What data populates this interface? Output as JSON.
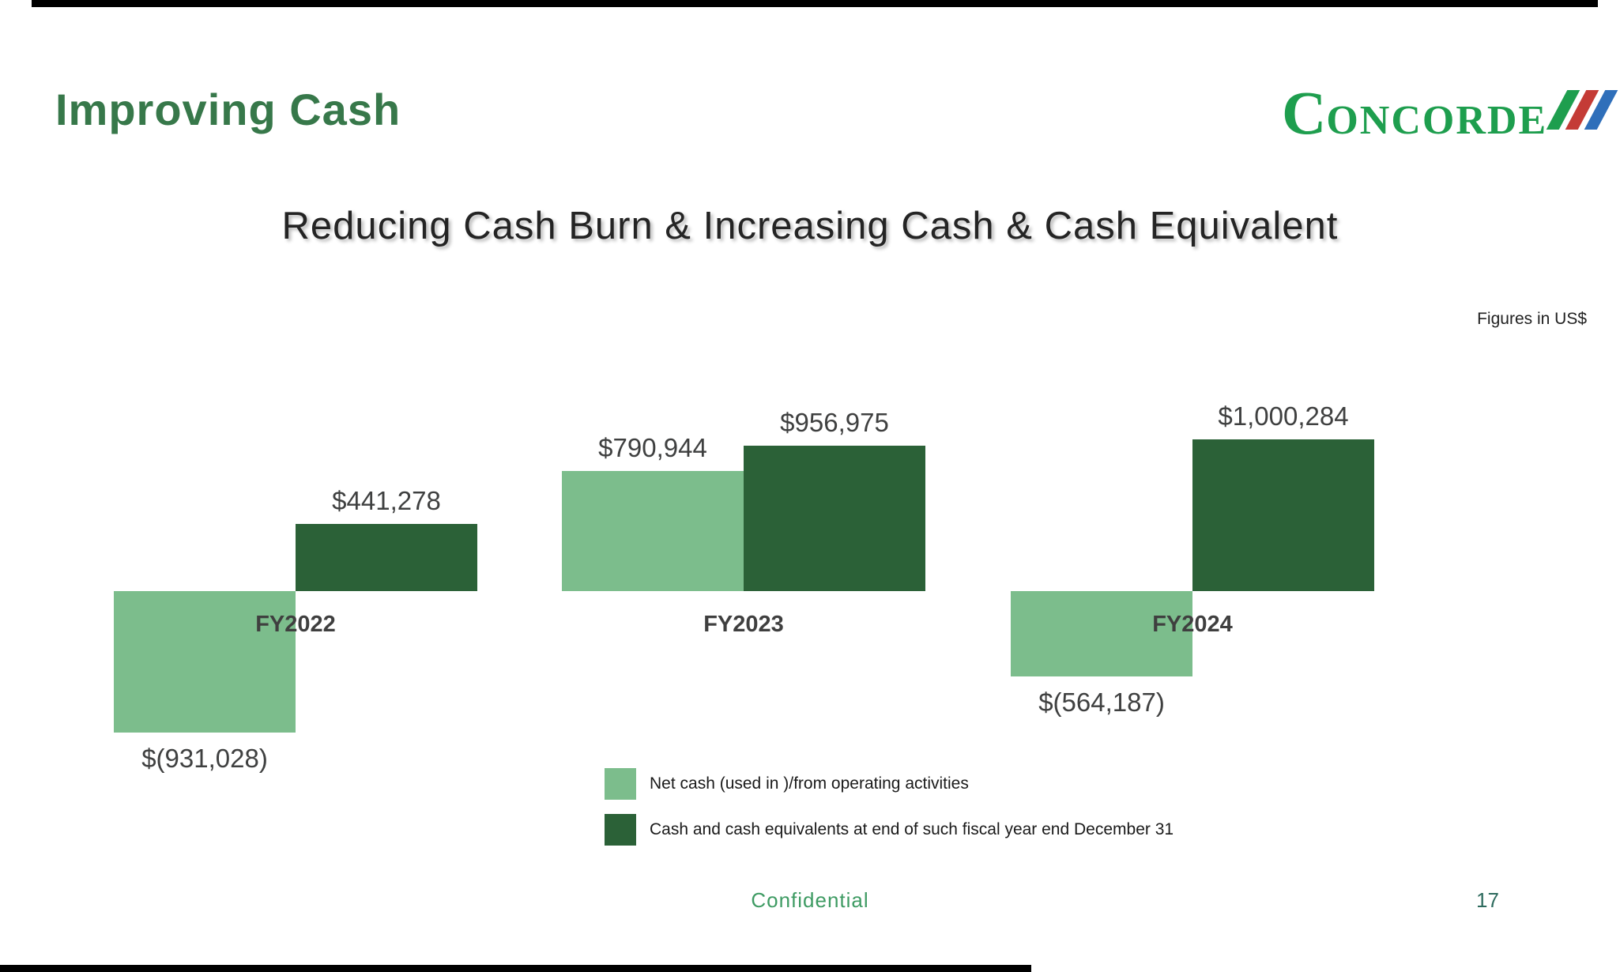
{
  "slide": {
    "title": "Improving Cash",
    "subtitle": "Reducing Cash Burn & Increasing Cash & Cash Equivalent",
    "figures_note": "Figures in US$",
    "logo": {
      "first_letter": "C",
      "rest": "ONCORDE"
    },
    "footer": {
      "confidential": "Confidential",
      "page_number": "17"
    }
  },
  "colors": {
    "title_green": "#37784A",
    "logo_green": "#1E9E4E",
    "logo_stripe_green": "#1E9E4E",
    "logo_stripe_red": "#C43B36",
    "logo_stripe_blue": "#2F6FBA",
    "light_green_bar": "#7CBD8C",
    "dark_green_bar": "#2B6137",
    "footer_green": "#3E9B63"
  },
  "chart_data": {
    "type": "bar",
    "title": "Reducing Cash Burn & Increasing Cash & Cash Equivalent",
    "categories": [
      "FY2022",
      "FY2023",
      "FY2024"
    ],
    "series": [
      {
        "name": "Net cash (used in )/from operating activities",
        "color": "#7CBD8C",
        "values": [
          -931028,
          790944,
          -564187
        ],
        "labels": [
          "$(931,028)",
          "$790,944",
          "$(564,187)"
        ]
      },
      {
        "name": "Cash and cash equivalents at end of such fiscal year end December 31",
        "color": "#2B6137",
        "values": [
          441278,
          956975,
          1000284
        ],
        "labels": [
          "$441,278",
          "$956,975",
          "$1,000,284"
        ]
      }
    ],
    "xlabel": "",
    "ylabel": "",
    "units": "US$",
    "baseline": 0,
    "grid": false,
    "axes_visible": false,
    "legend_position": "bottom-center"
  }
}
